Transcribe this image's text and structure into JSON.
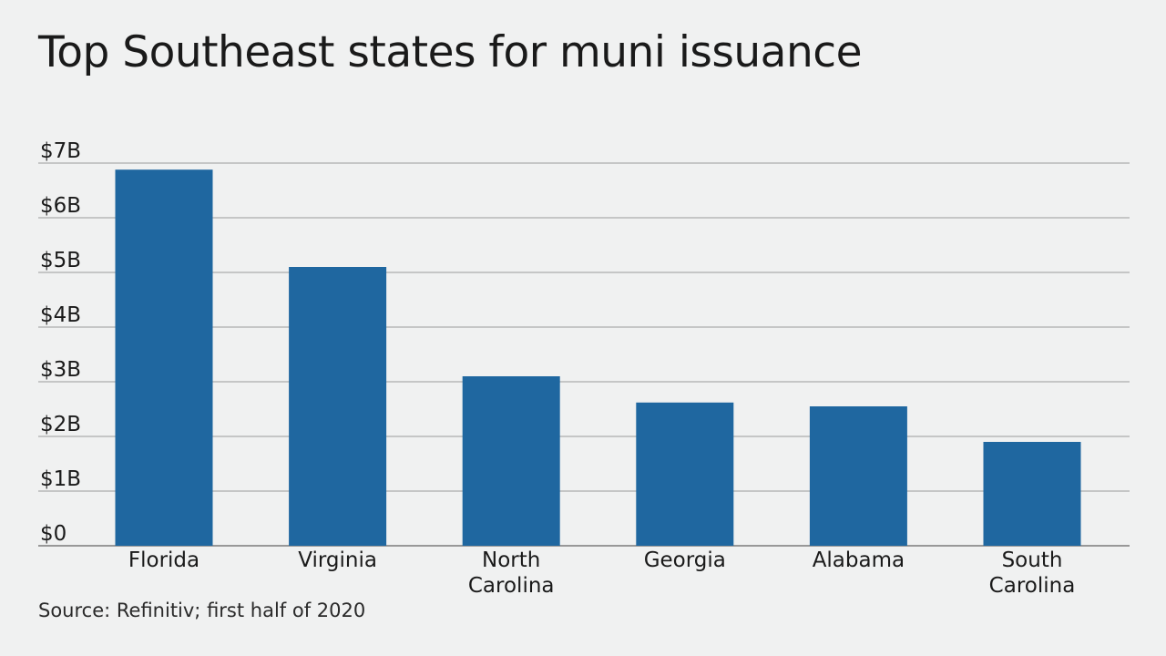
{
  "title": "Top Southeast states for muni issuance",
  "source": "Source: Refinitiv; first half of 2020",
  "colors": {
    "bar": "#1f67a0",
    "grid": "#9a9a9a",
    "axis": "#7a7a7a"
  },
  "chart_data": {
    "type": "bar",
    "title": "Top Southeast states for muni issuance",
    "xlabel": "",
    "ylabel": "",
    "ylim": [
      0,
      7
    ],
    "grid": true,
    "yticks": [
      "$0",
      "$1B",
      "$2B",
      "$3B",
      "$4B",
      "$5B",
      "$6B",
      "$7B"
    ],
    "categories": [
      [
        "Florida"
      ],
      [
        "Virginia"
      ],
      [
        "North",
        "Carolina"
      ],
      [
        "Georgia"
      ],
      [
        "Alabama"
      ],
      [
        "South",
        "Carolina"
      ]
    ],
    "values": [
      6.88,
      5.1,
      3.1,
      2.62,
      2.55,
      1.9
    ]
  }
}
